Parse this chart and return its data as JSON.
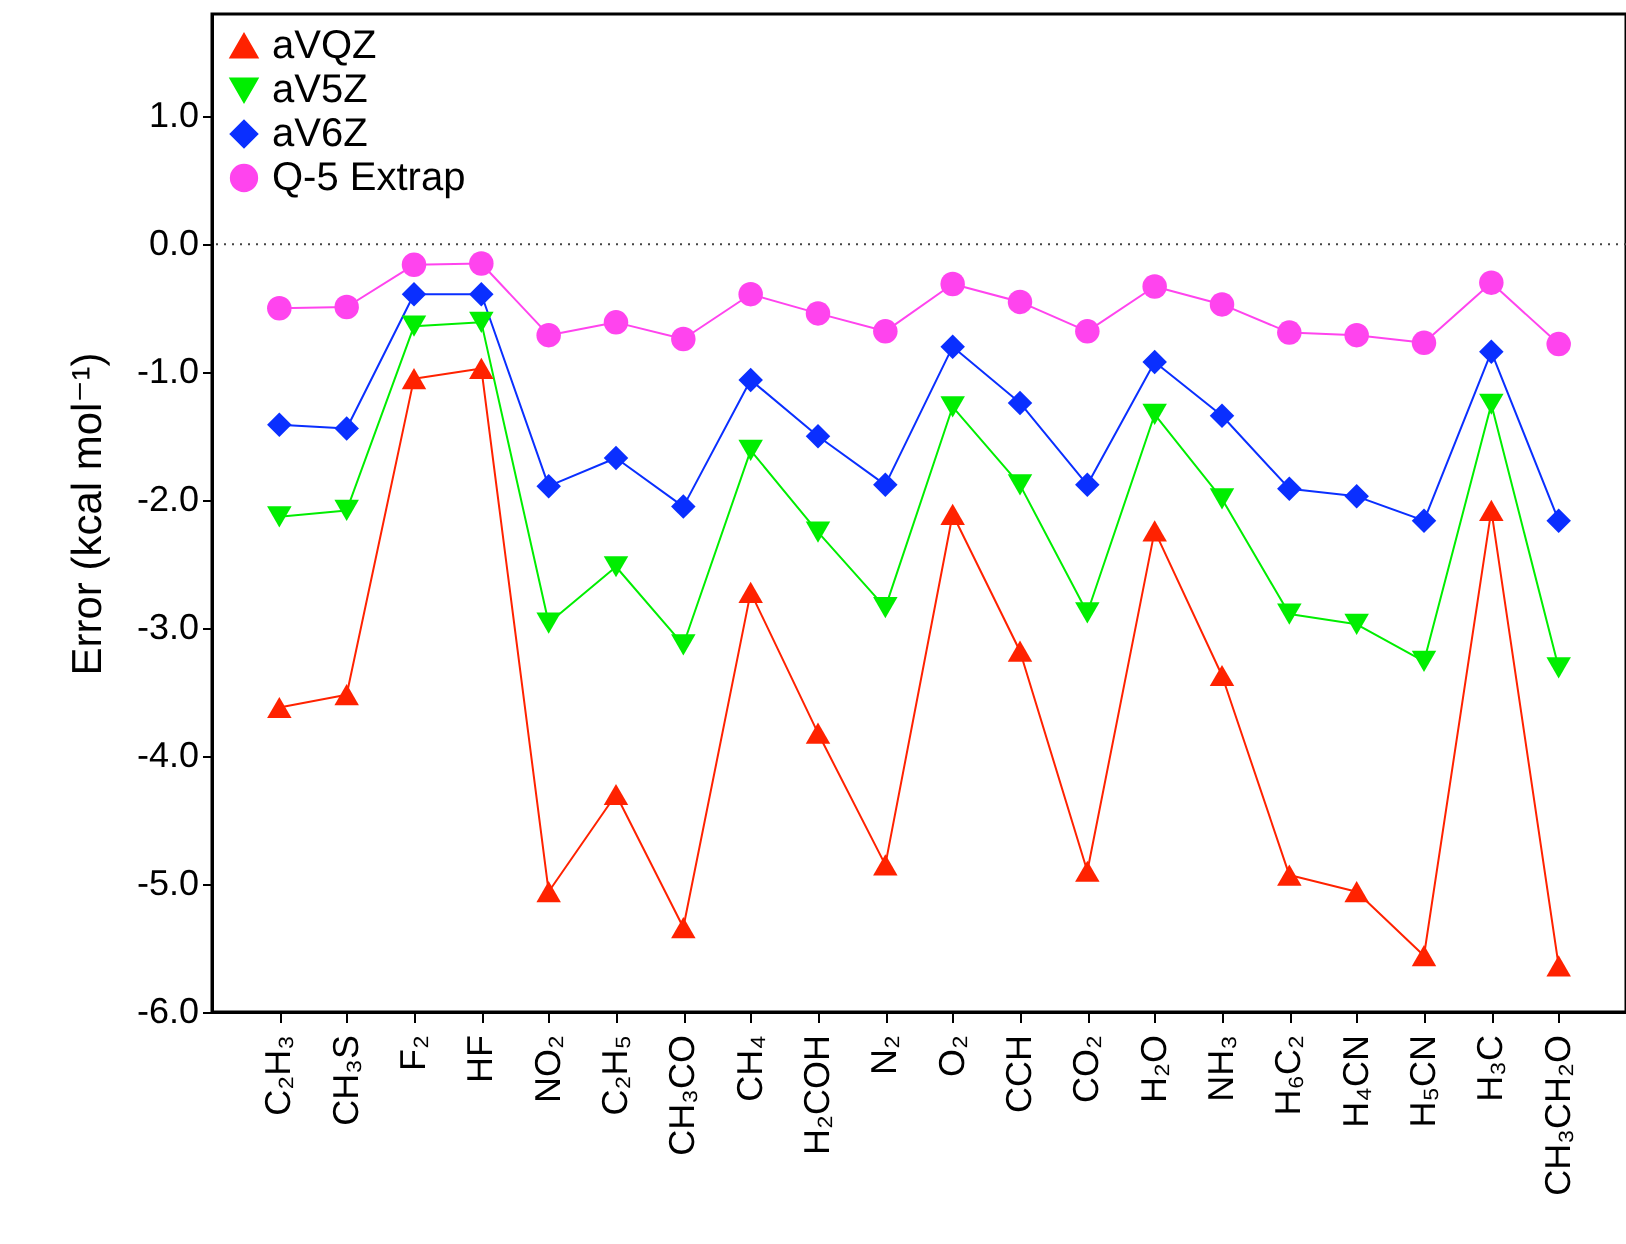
{
  "chart_data": {
    "type": "line",
    "ylabel": "Error (kcal mol⁻¹)",
    "categories": [
      "C₂H₃",
      "CH₃S",
      "F₂",
      "HF",
      "NO₂",
      "C₂H₅",
      "CH₃CO",
      "CH₄",
      "H₂COH",
      "N₂",
      "O₂",
      "CCH",
      "CO₂",
      "H₂O",
      "NH₃",
      "H₆C₂",
      "H₄CN",
      "H₅CN",
      "H₃C",
      "CH₃CH₂O"
    ],
    "series": [
      {
        "name": "aVQZ",
        "color": "#ff2200",
        "marker": "triangle",
        "values": [
          -3.62,
          -3.52,
          -1.05,
          -0.97,
          -5.06,
          -4.3,
          -5.34,
          -2.72,
          -3.82,
          -4.85,
          -2.11,
          -3.18,
          -4.9,
          -2.24,
          -3.37,
          -4.93,
          -5.06,
          -5.56,
          -2.08,
          -5.64
        ]
      },
      {
        "name": "aV5Z",
        "color": "#00ee00",
        "marker": "triangle-down",
        "values": [
          -2.13,
          -2.08,
          -0.64,
          -0.61,
          -2.96,
          -2.52,
          -3.13,
          -1.61,
          -2.25,
          -2.84,
          -1.27,
          -1.88,
          -2.88,
          -1.33,
          -1.99,
          -2.89,
          -2.97,
          -3.26,
          -1.25,
          -3.31
        ]
      },
      {
        "name": "aV6Z",
        "color": "#0a2fff",
        "marker": "diamond",
        "values": [
          -1.41,
          -1.44,
          -0.39,
          -0.39,
          -1.89,
          -1.67,
          -2.05,
          -1.06,
          -1.5,
          -1.88,
          -0.8,
          -1.24,
          -1.88,
          -0.92,
          -1.34,
          -1.91,
          -1.97,
          -2.16,
          -0.84,
          -2.16
        ]
      },
      {
        "name": "Q-5 Extrap",
        "color": "#ff44ee",
        "marker": "circle",
        "values": [
          -0.5,
          -0.49,
          -0.16,
          -0.15,
          -0.71,
          -0.61,
          -0.74,
          -0.39,
          -0.54,
          -0.68,
          -0.31,
          -0.45,
          -0.68,
          -0.33,
          -0.47,
          -0.69,
          -0.71,
          -0.77,
          -0.3,
          -0.78
        ]
      }
    ],
    "ylim": [
      -6,
      1.8
    ],
    "yticks": [
      {
        "value": -6,
        "label": "-6.0"
      },
      {
        "value": -5,
        "label": "-5.0"
      },
      {
        "value": -4,
        "label": "-4.0"
      },
      {
        "value": -3,
        "label": "-3.0"
      },
      {
        "value": -2,
        "label": "-2.0"
      },
      {
        "value": -1,
        "label": "-1.0"
      },
      {
        "value": 0,
        "label": "0.0"
      },
      {
        "value": 1,
        "label": "1.0"
      }
    ],
    "ref_lines": [
      {
        "axis": "y",
        "value": 0,
        "color": "#444444",
        "line_style": "dotted"
      }
    ],
    "legend": "top left",
    "grid": false
  }
}
